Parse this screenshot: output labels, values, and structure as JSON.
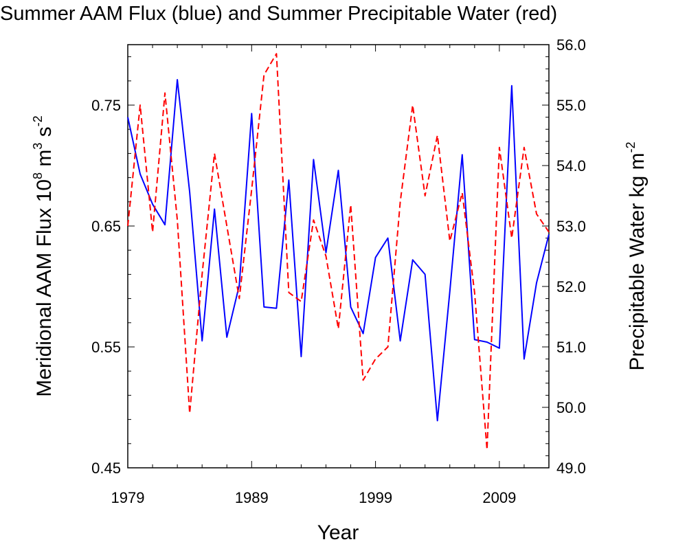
{
  "chart_data": {
    "type": "line",
    "title": "Summer AAM Flux (blue) and Summer Precipitable Water (red)",
    "xlabel": "Year",
    "ylabel_left": {
      "main": "Meridional AAM Flux 10",
      "sup1": "8",
      "mid1": " m",
      "sup2": "3",
      "mid2": " s",
      "sup3": "-2"
    },
    "ylabel_right": {
      "main": "Precipitable Water kg m",
      "sup": "-2"
    },
    "xlim": [
      1979,
      2013
    ],
    "ylim_left": [
      0.45,
      0.8
    ],
    "ylim_right": [
      49.0,
      56.0
    ],
    "x_ticks": [
      "1979",
      "1989",
      "1999",
      "2009"
    ],
    "y_ticks_left": [
      "0.45",
      "0.55",
      "0.65",
      "0.75"
    ],
    "y_ticks_right": [
      "49.0",
      "50.0",
      "51.0",
      "52.0",
      "53.0",
      "54.0",
      "55.0",
      "56.0"
    ],
    "x": [
      1979,
      1980,
      1981,
      1982,
      1983,
      1984,
      1985,
      1986,
      1987,
      1988,
      1989,
      1990,
      1991,
      1992,
      1993,
      1994,
      1995,
      1996,
      1997,
      1998,
      1999,
      2000,
      2001,
      2002,
      2003,
      2004,
      2005,
      2006,
      2007,
      2008,
      2009,
      2010,
      2011,
      2012,
      2013
    ],
    "series": [
      {
        "axis": "left",
        "color": "#0000ff",
        "dash": "solid",
        "values": [
          0.74,
          0.693,
          0.668,
          0.651,
          0.771,
          0.678,
          0.555,
          0.664,
          0.558,
          0.601,
          0.743,
          0.583,
          0.582,
          0.688,
          0.542,
          0.705,
          0.628,
          0.696,
          0.583,
          0.561,
          0.624,
          0.64,
          0.555,
          0.622,
          0.61,
          0.489,
          0.596,
          0.709,
          0.556,
          0.554,
          0.549,
          0.766,
          0.54,
          0.603,
          0.643
        ]
      },
      {
        "axis": "right",
        "color": "#ff0000",
        "dash": "dashed",
        "values": [
          53.0,
          55.0,
          52.9,
          55.2,
          53.1,
          49.9,
          52.2,
          54.2,
          53.0,
          51.8,
          53.6,
          55.5,
          55.85,
          51.9,
          51.75,
          53.1,
          52.5,
          51.3,
          53.35,
          50.45,
          50.8,
          51.0,
          53.4,
          55.0,
          53.5,
          54.5,
          52.75,
          53.55,
          51.9,
          49.3,
          54.3,
          52.8,
          54.3,
          53.2,
          52.9
        ]
      }
    ],
    "grid": false,
    "legend": "none"
  }
}
